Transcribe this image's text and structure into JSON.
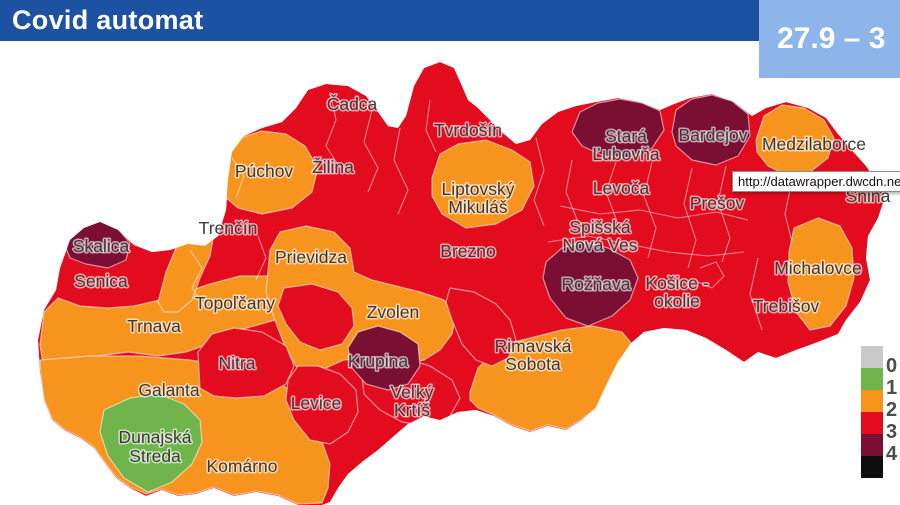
{
  "header": {
    "title": "Covid automat",
    "date_range": "27.9 – 3"
  },
  "tooltip": {
    "url": "http://datawrapper.dwcdn.net/8M"
  },
  "colors": {
    "header_blue": "#1d52a2",
    "date_box_blue": "#8db5e9",
    "levels": {
      "0": "#c9c9c9",
      "1": "#6fb54b",
      "2": "#f6941e",
      "3": "#e30b1e",
      "4": "#7a0f33",
      "5": "#0e0e0e"
    },
    "label_text": "#3e3a39"
  },
  "legend": {
    "swatches": [
      "#c9c9c9",
      "#6fb54b",
      "#f6941e",
      "#e30b1e",
      "#7a0f33",
      "#0e0e0e"
    ],
    "tick_labels": [
      "0",
      "1",
      "2",
      "3",
      "4"
    ]
  },
  "map": {
    "districts": [
      {
        "id": "cadca",
        "lines": [
          "Čadca"
        ],
        "level": 3
      },
      {
        "id": "tvrdosin",
        "lines": [
          "Tvrdošín"
        ],
        "level": 3
      },
      {
        "id": "stara-lubovna",
        "lines": [
          "Stará",
          "Ľubovňa"
        ],
        "level": 4
      },
      {
        "id": "bardejov",
        "lines": [
          "Bardejov"
        ],
        "level": 4
      },
      {
        "id": "medzilaborce",
        "lines": [
          "Medzilaborce"
        ],
        "level": 2
      },
      {
        "id": "puchov",
        "lines": [
          "Púchov"
        ],
        "level": 2
      },
      {
        "id": "zilina",
        "lines": [
          "Žilina"
        ],
        "level": 3
      },
      {
        "id": "liptovsky-mikulas",
        "lines": [
          "Liptovský",
          "Mikuláš"
        ],
        "level": 2
      },
      {
        "id": "levoca",
        "lines": [
          "Levoča"
        ],
        "level": 3
      },
      {
        "id": "presov",
        "lines": [
          "Prešov"
        ],
        "level": 3
      },
      {
        "id": "snina",
        "lines": [
          "Snina"
        ],
        "level": 3
      },
      {
        "id": "trencin",
        "lines": [
          "Trenčín"
        ],
        "level": 3
      },
      {
        "id": "spisska-nova-ves",
        "lines": [
          "Spišská",
          "Nová Ves"
        ],
        "level": 3
      },
      {
        "id": "skalica",
        "lines": [
          "Skalica"
        ],
        "level": 4
      },
      {
        "id": "prievidza",
        "lines": [
          "Prievidza"
        ],
        "level": 2
      },
      {
        "id": "brezno",
        "lines": [
          "Brezno"
        ],
        "level": 3
      },
      {
        "id": "senica",
        "lines": [
          "Senica"
        ],
        "level": 3
      },
      {
        "id": "roznava",
        "lines": [
          "Rožňava"
        ],
        "level": 4
      },
      {
        "id": "kosice-okolie",
        "lines": [
          "Košice -",
          "okolie"
        ],
        "level": 3
      },
      {
        "id": "michalovce",
        "lines": [
          "Michalovce"
        ],
        "level": 2
      },
      {
        "id": "topolcany",
        "lines": [
          "Topoľčany"
        ],
        "level": 2
      },
      {
        "id": "zvolen",
        "lines": [
          "Zvolen"
        ],
        "level": 2
      },
      {
        "id": "trebisov",
        "lines": [
          "Trebišov"
        ],
        "level": 3
      },
      {
        "id": "trnava",
        "lines": [
          "Trnava"
        ],
        "level": 2
      },
      {
        "id": "rimavska-sobota",
        "lines": [
          "Rimavská",
          "Sobota"
        ],
        "level": 2
      },
      {
        "id": "nitra",
        "lines": [
          "Nitra"
        ],
        "level": 3
      },
      {
        "id": "krupina",
        "lines": [
          "Krupina"
        ],
        "level": 4
      },
      {
        "id": "galanta",
        "lines": [
          "Galanta"
        ],
        "level": 2
      },
      {
        "id": "velky-krtis",
        "lines": [
          "Veľký",
          "Krtíš"
        ],
        "level": 3
      },
      {
        "id": "levice",
        "lines": [
          "Levice"
        ],
        "level": 3
      },
      {
        "id": "dunajska-streda",
        "lines": [
          "Dunajská",
          "Streda"
        ],
        "level": 1
      },
      {
        "id": "komarno",
        "lines": [
          "Komárno"
        ],
        "level": 2
      }
    ]
  }
}
